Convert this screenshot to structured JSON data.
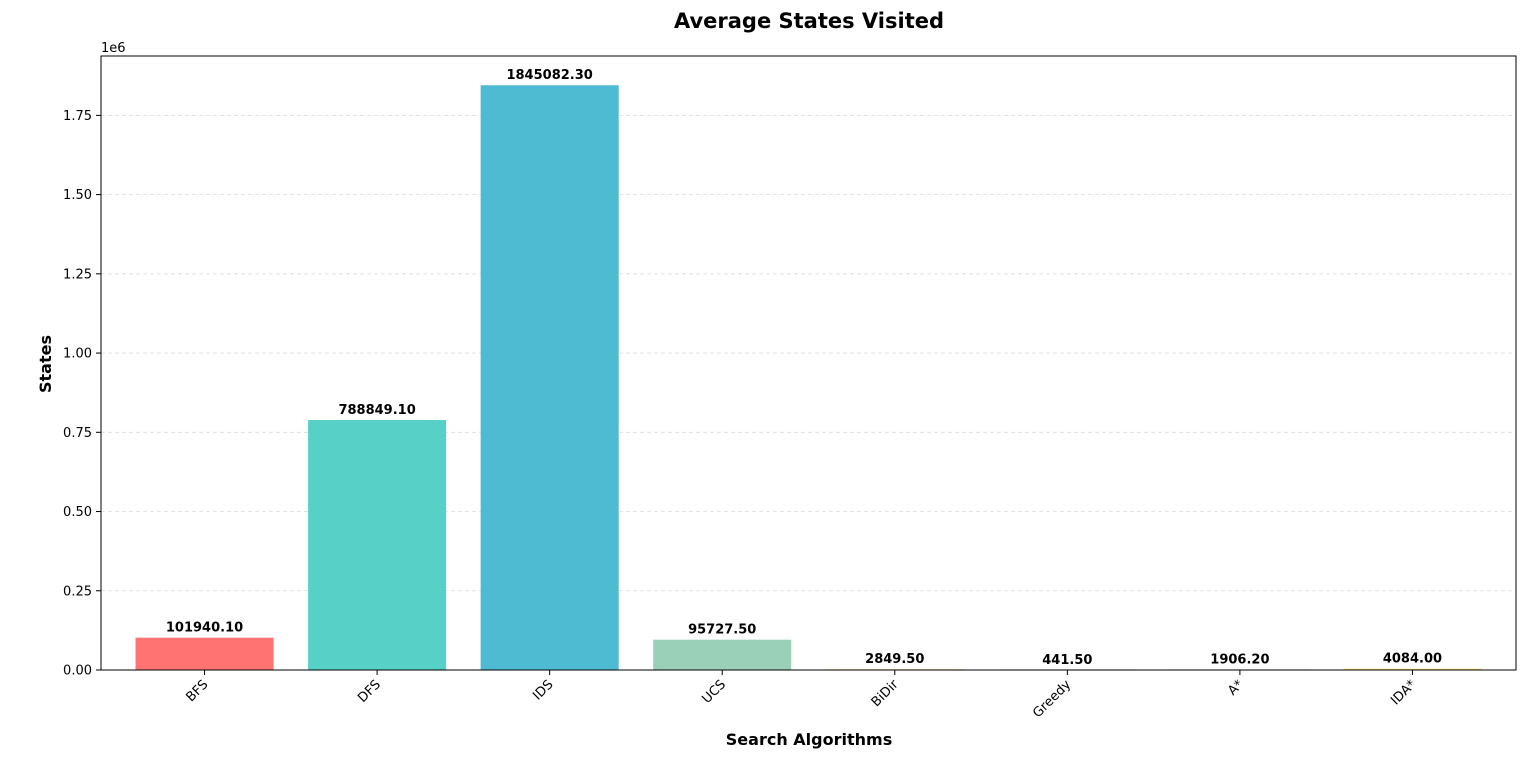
{
  "chart_data": {
    "type": "bar",
    "title": "Average States Visited",
    "xlabel": "Search Algorithms",
    "ylabel": "States",
    "y_offset_label": "1e6",
    "y_scale": 1000000,
    "ylim": [
      0,
      1937336
    ],
    "yticks": [
      0,
      250000,
      500000,
      750000,
      1000000,
      1250000,
      1500000,
      1750000
    ],
    "ytick_labels": [
      "0.00",
      "0.25",
      "0.50",
      "0.75",
      "1.00",
      "1.25",
      "1.50",
      "1.75"
    ],
    "grid": "y-dashed",
    "categories": [
      "BFS",
      "DFS",
      "IDS",
      "UCS",
      "BiDir",
      "Greedy",
      "A*",
      "IDA*"
    ],
    "values": [
      101940.1,
      788849.1,
      1845082.3,
      95727.5,
      2849.5,
      441.5,
      1906.2,
      4084.0
    ],
    "value_labels": [
      "101940.10",
      "788849.10",
      "1845082.30",
      "95727.50",
      "2849.50",
      "441.50",
      "1906.20",
      "4084.00"
    ],
    "colors": [
      "#ff6b6b",
      "#4ecdc4",
      "#45b7d1",
      "#96ceb4",
      "#ffeaa7",
      "#dda0dd",
      "#98d8c8",
      "#f7dc6f"
    ]
  }
}
